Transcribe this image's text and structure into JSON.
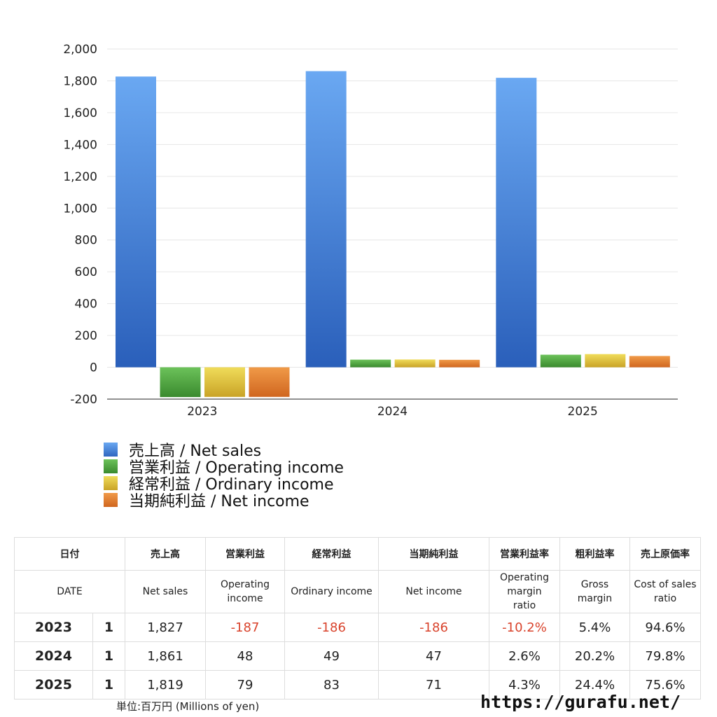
{
  "chart_data": {
    "type": "bar",
    "categories": [
      "2023",
      "2024",
      "2025"
    ],
    "series": [
      {
        "name": "売上高 / Net sales",
        "values": [
          1827,
          1861,
          1819
        ],
        "color": "#3f7fdc"
      },
      {
        "name": "営業利益 / Operating income",
        "values": [
          -187,
          48,
          79
        ],
        "color": "#4a9e3c"
      },
      {
        "name": "経常利益 / Ordinary income",
        "values": [
          -186,
          49,
          83
        ],
        "color": "#e2c33a"
      },
      {
        "name": "当期純利益 / Net income",
        "values": [
          -186,
          47,
          71
        ],
        "color": "#df7a2c"
      }
    ],
    "ylim": [
      -200,
      2000
    ],
    "yticks": [
      "2,000",
      "1,800",
      "1,600",
      "1,400",
      "1,200",
      "1,000",
      "800",
      "600",
      "400",
      "200",
      "0",
      "-200"
    ],
    "ytick_values": [
      2000,
      1800,
      1600,
      1400,
      1200,
      1000,
      800,
      600,
      400,
      200,
      0,
      -200
    ],
    "grid": true,
    "legend_position": "bottom-left"
  },
  "table": {
    "header_ja": {
      "date": "日付",
      "net_sales": "売上高",
      "operating_income": "営業利益",
      "ordinary_income": "経常利益",
      "net_income": "当期純利益",
      "op_margin": "営業利益率",
      "gross_margin": "粗利益率",
      "cost_ratio": "売上原価率"
    },
    "header_en": {
      "date": "DATE",
      "net_sales": "Net sales",
      "operating_income": "Operating income",
      "ordinary_income": "Ordinary income",
      "net_income": "Net income",
      "op_margin": "Operating margin ratio",
      "gross_margin": "Gross margin",
      "cost_ratio": "Cost of sales ratio"
    },
    "rows": [
      {
        "year": "2023",
        "period": "1",
        "net_sales": "1,827",
        "operating_income": "-187",
        "ordinary_income": "-186",
        "net_income": "-186",
        "op_margin": "-10.2%",
        "gross_margin": "5.4%",
        "cost_ratio": "94.6%"
      },
      {
        "year": "2024",
        "period": "1",
        "net_sales": "1,861",
        "operating_income": "48",
        "ordinary_income": "49",
        "net_income": "47",
        "op_margin": "2.6%",
        "gross_margin": "20.2%",
        "cost_ratio": "79.8%"
      },
      {
        "year": "2025",
        "period": "1",
        "net_sales": "1,819",
        "operating_income": "79",
        "ordinary_income": "83",
        "net_income": "71",
        "op_margin": "4.3%",
        "gross_margin": "24.4%",
        "cost_ratio": "75.6%"
      }
    ]
  },
  "footer": {
    "unit": "単位:百万円 (Millions of yen)",
    "url": "https://gurafu.net/"
  }
}
